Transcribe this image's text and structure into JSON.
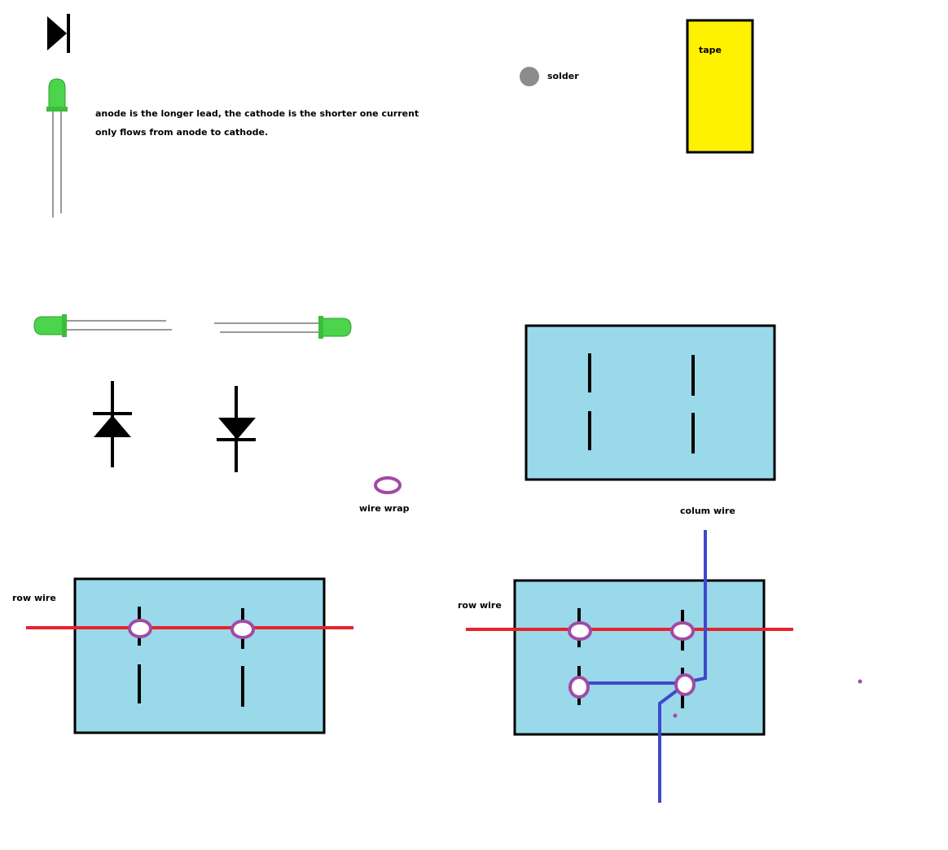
{
  "labels": {
    "led_note": "anode is the longer lead, the cathode is the shorter one current only flows from anode to cathode.",
    "solder": "solder",
    "tape": "tape",
    "wire_wrap": "wire wrap",
    "column_wire": "colum wire",
    "row_wire_left": "row wire",
    "row_wire_right": "row wire"
  },
  "colors": {
    "board_fill": "#99d9ea",
    "led_green": "#4cd44c",
    "row_wire": "#e8222b",
    "column_wire": "#3f48cc",
    "wire_wrap": "#a349a4",
    "solder": "#8c8c8c",
    "tape": "#fff200"
  }
}
